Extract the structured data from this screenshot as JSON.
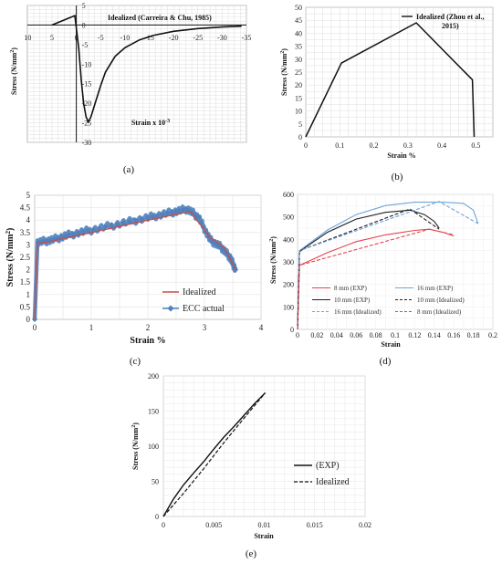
{
  "chart_data": [
    {
      "panel": "(a)",
      "type": "line",
      "xlabel": "Strain x 10",
      "xlabel_sup": "-3",
      "ylabel": "Stress (N/mm",
      "ylabel_sup": "2",
      "ylabel_end": ")",
      "xticks": [
        "10",
        "5",
        "0",
        "-5",
        "-10",
        "-15",
        "-20",
        "-25",
        "-30",
        "-35"
      ],
      "yticks": [
        "5",
        "0",
        "-5",
        "-10",
        "-15",
        "-20",
        "-25",
        "-30"
      ],
      "xlim": [
        10,
        -35
      ],
      "ylim": [
        -30,
        5
      ],
      "series": [
        {
          "name": "Idealized (Carreira & Chu, 1985)",
          "x": [
            5,
            0.3,
            -0.5,
            -1,
            -1.5,
            -2,
            -2.5,
            -3,
            -4,
            -5,
            -6,
            -8,
            -10,
            -13,
            -16,
            -20,
            -25,
            -30,
            -34
          ],
          "y": [
            0,
            2.4,
            -6,
            -14,
            -20,
            -23.5,
            -24.8,
            -23.5,
            -19.5,
            -15.5,
            -12,
            -8,
            -5.8,
            -3.8,
            -2.6,
            -1.6,
            -0.9,
            -0.5,
            -0.3
          ]
        }
      ]
    },
    {
      "panel": "(b)",
      "type": "line",
      "xlabel": "Strain %",
      "ylabel": "Stress (N/mm",
      "ylabel_sup": "2",
      "ylabel_end": ")",
      "xticks": [
        "0",
        "0.1",
        "0.2",
        "0.3",
        "0.4",
        "0.5"
      ],
      "yticks": [
        "0",
        "5",
        "10",
        "15",
        "20",
        "25",
        "30",
        "35",
        "40",
        "45",
        "50"
      ],
      "xlim": [
        0,
        0.55
      ],
      "ylim": [
        0,
        50
      ],
      "series": [
        {
          "name": "Idealized (Zhou et al., 2015)",
          "x": [
            0,
            0.105,
            0.325,
            0.49,
            0.495
          ],
          "y": [
            0,
            28.5,
            44,
            22,
            0
          ]
        }
      ]
    },
    {
      "panel": "(c)",
      "type": "line",
      "xlabel": "Strain %",
      "ylabel": "Stress (N/mm",
      "ylabel_sup": "2",
      "ylabel_end": ")",
      "xticks": [
        "0",
        "1",
        "2",
        "3",
        "4"
      ],
      "yticks": [
        "0",
        "0.5",
        "1",
        "1.5",
        "2",
        "2.5",
        "3",
        "3.5",
        "4",
        "4.5",
        "5"
      ],
      "xlim": [
        0,
        4
      ],
      "ylim": [
        0,
        5
      ],
      "series": [
        {
          "name": "Idealized",
          "x": [
            0,
            0.05,
            0.3,
            1,
            2,
            2.75,
            3.1,
            3.35,
            3.55
          ],
          "y": [
            0,
            3.05,
            3.15,
            3.5,
            4.0,
            4.35,
            3.3,
            2.9,
            2.0
          ]
        },
        {
          "name": "ECC actual",
          "x": [
            0,
            0.05,
            0.3,
            0.6,
            1,
            1.5,
            2,
            2.4,
            2.7,
            2.9,
            3.1,
            3.3,
            3.45,
            3.55
          ],
          "y": [
            0,
            3.1,
            3.2,
            3.4,
            3.6,
            3.85,
            4.1,
            4.3,
            4.45,
            4.1,
            3.2,
            2.9,
            2.5,
            2.0
          ]
        }
      ]
    },
    {
      "panel": "(d)",
      "type": "line",
      "xlabel": "Strain",
      "ylabel": "Stress (N/mm",
      "ylabel_sup": "2",
      "ylabel_end": ")",
      "xticks": [
        "0",
        "0.02",
        "0.04",
        "0.06",
        "0.08",
        "0.1",
        "0.12",
        "0.14",
        "0.16",
        "0.18",
        "0.2"
      ],
      "yticks": [
        "0",
        "100",
        "200",
        "300",
        "400",
        "500",
        "600"
      ],
      "xlim": [
        0,
        0.2
      ],
      "ylim": [
        0,
        600
      ],
      "series": [
        {
          "name": "8 mm (EXP)",
          "dash": false,
          "color": "#e8414f",
          "x": [
            0,
            0.002,
            0.01,
            0.03,
            0.06,
            0.09,
            0.12,
            0.135,
            0.15,
            0.16
          ],
          "y": [
            0,
            285,
            300,
            340,
            390,
            420,
            440,
            445,
            430,
            415
          ]
        },
        {
          "name": "16 mm (EXP)",
          "dash": false,
          "color": "#6fa4d8",
          "x": [
            0,
            0.002,
            0.01,
            0.03,
            0.06,
            0.09,
            0.12,
            0.15,
            0.17,
            0.18,
            0.185
          ],
          "y": [
            0,
            350,
            375,
            440,
            510,
            550,
            565,
            565,
            560,
            530,
            470
          ]
        },
        {
          "name": "10 mm (EXP)",
          "dash": false,
          "color": "#222222",
          "x": [
            0,
            0.002,
            0.01,
            0.03,
            0.06,
            0.09,
            0.115,
            0.13,
            0.14,
            0.145
          ],
          "y": [
            0,
            345,
            370,
            430,
            490,
            520,
            530,
            510,
            480,
            450
          ]
        },
        {
          "name": "10 mm (Idealized)",
          "dash": true,
          "color": "#222222",
          "x": [
            0,
            0.002,
            0.115,
            0.145
          ],
          "y": [
            0,
            350,
            535,
            445
          ]
        },
        {
          "name": "16 mm (Idealized)",
          "dash": true,
          "color": "#6fa4d8",
          "x": [
            0,
            0.002,
            0.145,
            0.185
          ],
          "y": [
            0,
            350,
            568,
            470
          ]
        },
        {
          "name": "8 mm (Idealized)",
          "dash": true,
          "color": "#e8414f",
          "x": [
            0,
            0.002,
            0.135,
            0.16
          ],
          "y": [
            0,
            285,
            445,
            420
          ]
        }
      ]
    },
    {
      "panel": "(e)",
      "type": "line",
      "xlabel": "Strain",
      "ylabel": "Stress (N/mm",
      "ylabel_sup": "2",
      "ylabel_end": ")",
      "xticks": [
        "0",
        "0.005",
        "0.01",
        "0.015",
        "0.02"
      ],
      "yticks": [
        "0",
        "50",
        "100",
        "150",
        "200"
      ],
      "xlim": [
        0,
        0.02
      ],
      "ylim": [
        0,
        200
      ],
      "series": [
        {
          "name": "(EXP)",
          "dash": false,
          "x": [
            0,
            0.001,
            0.002,
            0.003,
            0.004,
            0.005,
            0.006,
            0.007,
            0.008,
            0.009,
            0.0101
          ],
          "y": [
            0,
            25,
            45,
            62,
            78,
            96,
            113,
            128,
            144,
            160,
            176
          ]
        },
        {
          "name": "Idealized",
          "dash": true,
          "x": [
            0,
            0.002,
            0.004,
            0.006,
            0.008,
            0.0101
          ],
          "y": [
            0,
            33,
            68,
            105,
            140,
            176
          ]
        }
      ]
    }
  ]
}
